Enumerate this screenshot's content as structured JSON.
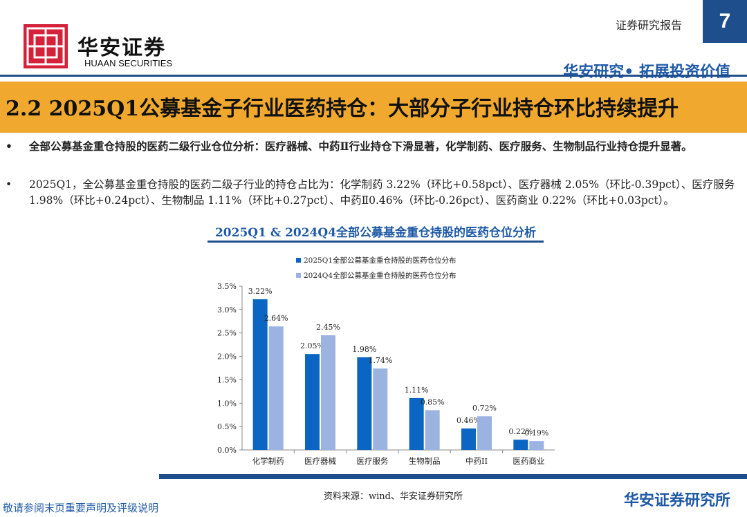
{
  "header": {
    "logo_cn": "华安证券",
    "logo_en": "HUAAN SECURITIES",
    "report_type": "证券研究报告",
    "page_number": "7",
    "slogan": "华安研究• 拓展投资价值"
  },
  "title": "2.2 2025Q1公募基金子行业医药持仓：大部分子行业持仓环比持续提升",
  "bullets": [
    "全部公募基金重仓持股的医药二级行业仓位分析：医疗器械、中药Ⅱ行业持仓下滑显著，化学制药、医疗服务、生物制品行业持仓提升显著。",
    "2025Q1，全公募基金重仓持股的医药二级子行业的持仓占比为：化学制药 3.22%（环比+0.58pct）、医疗器械 2.05%（环比-0.39pct）、医疗服务 1.98%（环比+0.24pct）、生物制品 1.11%（环比+0.27pct）、中药Ⅱ0.46%（环比-0.26pct）、医药商业 0.22%（环比+0.03pct）。"
  ],
  "chart_title": "2025Q1 & 2024Q4全部公募基金重仓持股的医药仓位分析",
  "chart_data": {
    "type": "bar",
    "categories": [
      "化学制药",
      "医疗器械",
      "医疗服务",
      "生物制品",
      "中药II",
      "医药商业"
    ],
    "series": [
      {
        "name": "2025Q1全部公募基金重仓持股的医药仓位分布",
        "values": [
          3.22,
          2.05,
          1.98,
          1.11,
          0.46,
          0.22
        ],
        "color": "#0a66c2"
      },
      {
        "name": "2024Q4全部公募基金重仓持股的医药仓位分布",
        "values": [
          2.64,
          2.45,
          1.74,
          0.85,
          0.72,
          0.19
        ],
        "color": "#9bb3e0"
      }
    ],
    "ylim": [
      0,
      3.5
    ],
    "yticks": [
      "0.0%",
      "0.5%",
      "1.0%",
      "1.5%",
      "2.0%",
      "2.5%",
      "3.0%",
      "3.5%"
    ],
    "value_labels": [
      [
        "3.22%",
        "2.05%",
        "1.98%",
        "1.11%",
        "0.46%",
        "0.22%"
      ],
      [
        "2.64%",
        "2.45%",
        "1.74%",
        "0.85%",
        "0.72%",
        "0.19%"
      ]
    ],
    "legend_position": "top"
  },
  "source": "资料来源：wind、华安证券研究所",
  "footer": {
    "disclaimer": "敬请参阅末页重要声明及评级说明",
    "brand": "华安证券研究所"
  }
}
